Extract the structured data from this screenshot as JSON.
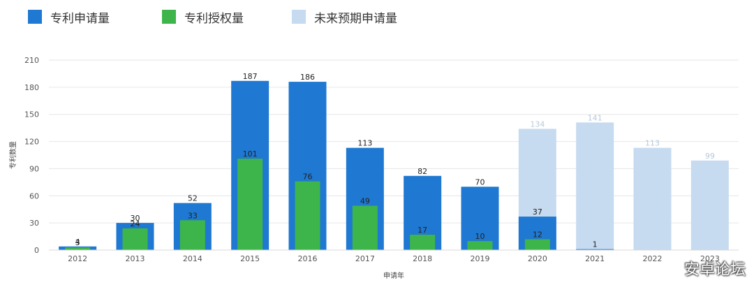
{
  "legend": [
    {
      "label": "专利申请量",
      "color": "#1f78d1"
    },
    {
      "label": "专利授权量",
      "color": "#3db54a"
    },
    {
      "label": "未来预期申请量",
      "color": "#c6daf0"
    }
  ],
  "watermark": "安卓论坛",
  "chart_data": {
    "type": "bar",
    "xlabel": "申请年",
    "ylabel": "专利数量",
    "ylim": [
      0,
      210
    ],
    "yticks": [
      0,
      30,
      60,
      90,
      120,
      150,
      180,
      210
    ],
    "grid": true,
    "legend_position": "top-left",
    "categories": [
      "2012",
      "2013",
      "2014",
      "2015",
      "2016",
      "2017",
      "2018",
      "2019",
      "2020",
      "2021",
      "2022",
      "2023"
    ],
    "series": [
      {
        "name": "专利申请量",
        "color": "#1f78d1",
        "values": [
          4,
          30,
          52,
          187,
          186,
          113,
          82,
          70,
          37,
          1,
          null,
          null
        ]
      },
      {
        "name": "专利授权量",
        "color": "#3db54a",
        "values": [
          3,
          24,
          33,
          101,
          76,
          49,
          17,
          10,
          12,
          null,
          null,
          null
        ]
      },
      {
        "name": "未来预期申请量",
        "color": "#c6daf0",
        "values": [
          null,
          null,
          null,
          null,
          null,
          null,
          null,
          null,
          134,
          141,
          113,
          99
        ]
      }
    ]
  }
}
